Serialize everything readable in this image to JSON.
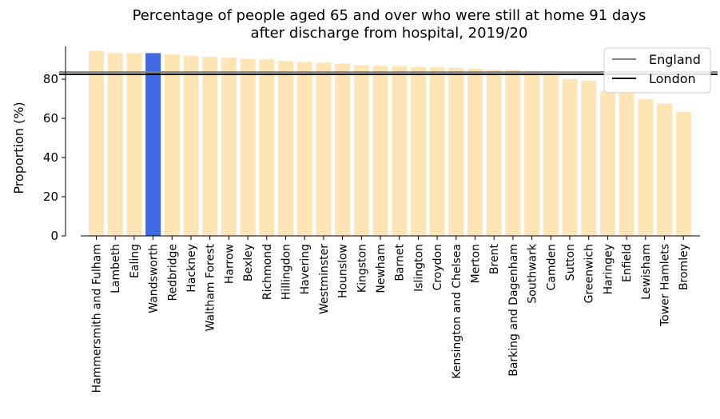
{
  "chart_data": {
    "type": "bar",
    "title_line1": "Percentage of people  aged 65 and over who were still at home 91 days",
    "title_line2": "after discharge from hospital, 2019/20",
    "xlabel": "",
    "ylabel": "Proportion (%)",
    "ylim": [
      0,
      100
    ],
    "yticks": [
      "0",
      "20",
      "40",
      "60",
      "80"
    ],
    "grid": false,
    "legend_position": "top-right",
    "categories": [
      "Hammersmith and Fulham",
      "Lambeth",
      "Ealing",
      "Wandsworth",
      "Redbridge",
      "Hackney",
      "Waltham Forest",
      "Harrow",
      "Bexley",
      "Richmond",
      "Hillingdon",
      "Havering",
      "Westminster",
      "Hounslow",
      "Kingston",
      "Newham",
      "Barnet",
      "Islington",
      "Croydon",
      "Kensington and Chelsea",
      "Merton",
      "Brent",
      "Barking and Dagenham",
      "Southwark",
      "Camden",
      "Sutton",
      "Greenwich",
      "Haringey",
      "Enfield",
      "Lewisham",
      "Tower Hamlets",
      "Bromley"
    ],
    "values": [
      94.5,
      93.3,
      93.3,
      93.3,
      92.6,
      92.0,
      91.4,
      91.0,
      90.4,
      90.1,
      89.3,
      88.8,
      88.4,
      88.0,
      87.0,
      86.8,
      86.7,
      86.3,
      86.1,
      85.7,
      85.3,
      84.8,
      84.8,
      83.5,
      82.5,
      80.0,
      79.2,
      74.0,
      73.8,
      69.9,
      67.6,
      63.3
    ],
    "highlight_category": "Wandsworth",
    "colors": {
      "bar": "#ffe4b5",
      "highlight": "#4169e1",
      "england_line": "#808080",
      "london_line": "#000000"
    },
    "reference_lines": [
      {
        "name": "England",
        "value": 83.6
      },
      {
        "name": "London",
        "value": 82.5
      }
    ]
  }
}
